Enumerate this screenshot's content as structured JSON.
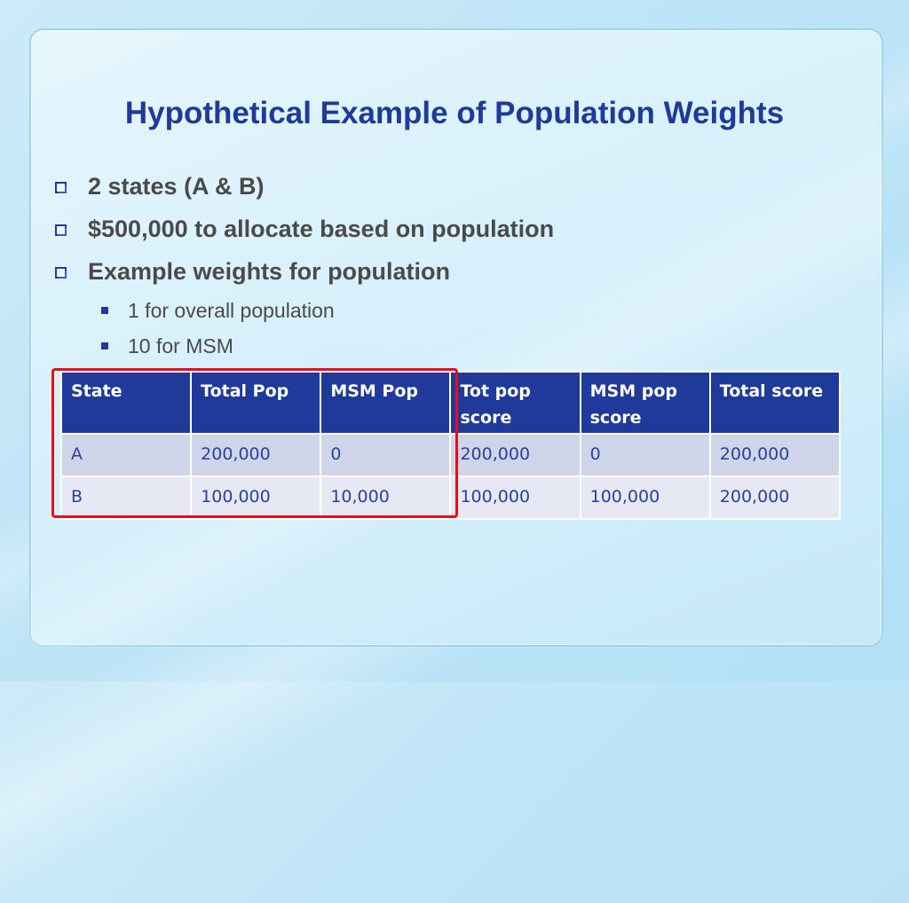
{
  "slide": {
    "title": "Hypothetical Example of Population Weights",
    "bullets": [
      {
        "text": "2 states (A & B)"
      },
      {
        "text": "$500,000 to allocate based on population"
      },
      {
        "text": "Example weights for population"
      }
    ],
    "sub_bullets": [
      {
        "text": "1 for overall population"
      },
      {
        "text": "10 for MSM"
      }
    ]
  },
  "table": {
    "headers": [
      "State",
      "Total Pop",
      "MSM Pop",
      "Tot pop score",
      "MSM pop score",
      "Total score"
    ],
    "rows": [
      [
        "A",
        "200,000",
        "0",
        "200,000",
        "0",
        "200,000"
      ],
      [
        "B",
        "100,000",
        "10,000",
        "100,000",
        "100,000",
        "200,000"
      ]
    ]
  },
  "colors": {
    "title": "#1f3a9a",
    "header_bg": "#1f3a9a",
    "highlight_border": "#e3101e"
  }
}
